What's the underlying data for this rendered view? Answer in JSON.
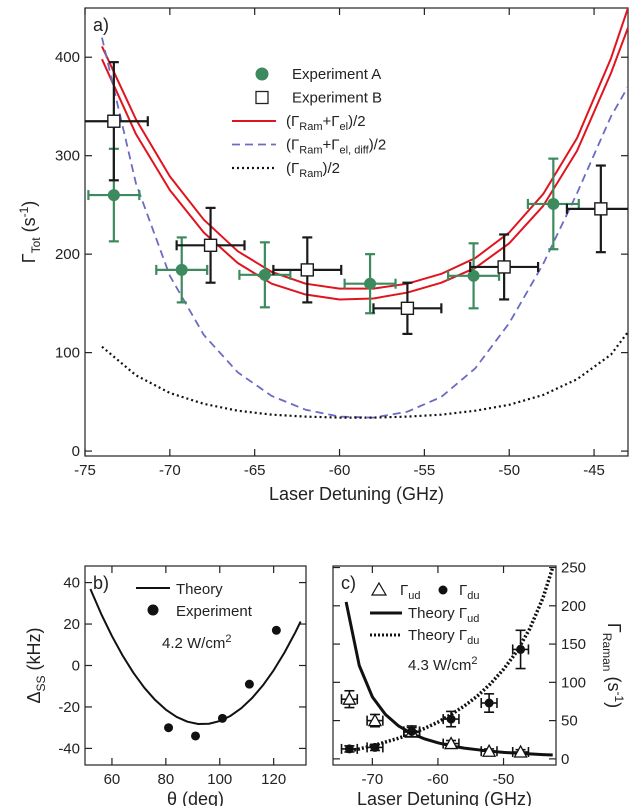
{
  "chart_data": [
    {
      "id": "a",
      "type": "scatter",
      "panel_label": "a)",
      "xlabel": "Laser Detuning (GHz)",
      "ylabel": "ΓTot (s-1)",
      "ylabel_parts": {
        "main": "Γ",
        "sub": "Tot",
        "unit_open": " (s",
        "unit_sup": "-1",
        "unit_close": ")"
      },
      "xlim": [
        -75,
        -43
      ],
      "ylim": [
        -5,
        450
      ],
      "xticks": [
        -75,
        -70,
        -65,
        -60,
        -55,
        -50,
        -45
      ],
      "yticks": [
        0,
        100,
        200,
        300,
        400
      ],
      "legend_position": "top-center",
      "legend": [
        {
          "label": "Experiment A",
          "main": "Experiment A"
        },
        {
          "label": "Experiment B",
          "main": "Experiment B"
        },
        {
          "label": "(ΓRam+Γel)/2",
          "p1": "(Γ",
          "s1": "Ram",
          "p2": "+Γ",
          "s2": "el",
          "p3": ")/2"
        },
        {
          "label": "(ΓRam+Γel, diff)/2",
          "p1": "(Γ",
          "s1": "Ram",
          "p2": "+Γ",
          "s2": "el, diff",
          "p3": ")/2"
        },
        {
          "label": "(ΓRam)/2",
          "p1": "(Γ",
          "s1": "Ram",
          "p2": "",
          "s2": "",
          "p3": ")/2"
        }
      ],
      "series": [
        {
          "name": "Experiment A",
          "kind": "points",
          "marker": "filled-circle",
          "color": "#3c8a5e",
          "points": [
            {
              "x": -73.3,
              "y": 260,
              "xerr": 1.5,
              "yerr": 47
            },
            {
              "x": -69.3,
              "y": 184,
              "xerr": 1.5,
              "yerr": 33
            },
            {
              "x": -64.4,
              "y": 179,
              "xerr": 1.5,
              "yerr": 33
            },
            {
              "x": -58.2,
              "y": 170,
              "xerr": 1.5,
              "yerr": 30
            },
            {
              "x": -52.1,
              "y": 178,
              "xerr": 1.5,
              "yerr": 33
            },
            {
              "x": -47.4,
              "y": 251,
              "xerr": 1.5,
              "yerr": 46
            }
          ]
        },
        {
          "name": "Experiment B",
          "kind": "points",
          "marker": "open-square",
          "color": "#1a1a1a",
          "points": [
            {
              "x": -73.3,
              "y": 335,
              "xerr": 2.0,
              "yerr": 60
            },
            {
              "x": -67.6,
              "y": 209,
              "xerr": 2.0,
              "yerr": 38
            },
            {
              "x": -61.9,
              "y": 184,
              "xerr": 2.0,
              "yerr": 33
            },
            {
              "x": -56.0,
              "y": 145,
              "xerr": 2.0,
              "yerr": 26
            },
            {
              "x": -50.3,
              "y": 187,
              "xerr": 2.0,
              "yerr": 33
            },
            {
              "x": -44.6,
              "y": 246,
              "xerr": 2.0,
              "yerr": 44
            }
          ]
        },
        {
          "name": "(ΓRam+Γel)/2 upper",
          "kind": "line",
          "style": "solid",
          "color": "#e0141e",
          "x": [
            -74,
            -72,
            -70,
            -68,
            -66,
            -64,
            -62,
            -60,
            -58,
            -56,
            -54,
            -52,
            -50,
            -48,
            -46,
            -44,
            -43
          ],
          "y": [
            411,
            337,
            279,
            235,
            203,
            182,
            170,
            165,
            165,
            170,
            180,
            196,
            222,
            261,
            318,
            399,
            450
          ]
        },
        {
          "name": "(ΓRam+Γel)/2 lower",
          "kind": "line",
          "style": "solid",
          "color": "#e0141e",
          "x": [
            -74,
            -72,
            -70,
            -68,
            -66,
            -64,
            -62,
            -60,
            -58,
            -56,
            -54,
            -52,
            -50,
            -48,
            -46,
            -44,
            -43
          ],
          "y": [
            398,
            322,
            265,
            222,
            191,
            170,
            159,
            154,
            155,
            161,
            171,
            186,
            211,
            249,
            305,
            384,
            430
          ]
        },
        {
          "name": "(ΓRam+Γel, diff)/2",
          "kind": "line",
          "style": "dashed",
          "color": "#6b6bc4",
          "x": [
            -74,
            -72,
            -70,
            -68,
            -66,
            -64,
            -62,
            -60,
            -58,
            -56,
            -54,
            -52,
            -50,
            -48,
            -46,
            -44,
            -43
          ],
          "y": [
            420,
            272,
            178,
            118,
            80,
            56,
            42,
            35,
            34,
            40,
            55,
            84,
            130,
            190,
            262,
            340,
            370
          ]
        },
        {
          "name": "(ΓRam)/2",
          "kind": "line",
          "style": "dotted",
          "color": "#111111",
          "x": [
            -74,
            -72,
            -70,
            -68,
            -66,
            -64,
            -62,
            -60,
            -58,
            -56,
            -54,
            -52,
            -50,
            -48,
            -46,
            -44,
            -43
          ],
          "y": [
            106,
            77,
            59,
            48,
            41,
            37,
            35,
            34,
            34,
            35,
            37,
            41,
            47,
            57,
            73,
            98,
            121
          ]
        }
      ]
    },
    {
      "id": "b",
      "type": "scatter",
      "panel_label": "b)",
      "xlabel": "θ (deg)",
      "ylabel": "ΔSS (kHz)",
      "ylabel_parts": {
        "main": "Δ",
        "sub": "SS",
        "unit_open": " (kHz)",
        "unit_sup": "",
        "unit_close": ""
      },
      "xlim": [
        50,
        132
      ],
      "ylim": [
        -48,
        48
      ],
      "xticks": [
        60,
        80,
        100,
        120
      ],
      "yticks": [
        -40,
        -20,
        0,
        20,
        40
      ],
      "legend_position": "top-left",
      "legend": [
        {
          "label": "Theory",
          "main": "Theory"
        },
        {
          "label": "Experiment",
          "main": "Experiment"
        }
      ],
      "annotation": {
        "text": "4.2 W/cm2",
        "main": "4.2 W/cm",
        "sup": "2"
      },
      "series": [
        {
          "name": "Theory",
          "kind": "line",
          "style": "solid",
          "color": "#111111",
          "x": [
            52,
            56,
            60,
            64,
            68,
            72,
            76,
            80,
            84,
            88,
            92,
            96,
            100,
            104,
            108,
            112,
            116,
            120,
            124,
            128,
            130
          ],
          "y": [
            36.9,
            24.9,
            14.2,
            4.7,
            -3.6,
            -10.7,
            -16.6,
            -21.3,
            -24.8,
            -27.1,
            -28.2,
            -28.1,
            -26.8,
            -24.3,
            -20.6,
            -15.7,
            -9.6,
            -2.3,
            6.2,
            15.9,
            21.2
          ]
        },
        {
          "name": "Experiment",
          "kind": "points",
          "marker": "filled-circle",
          "color": "#111111",
          "points": [
            {
              "x": 81,
              "y": -30
            },
            {
              "x": 91,
              "y": -34
            },
            {
              "x": 101,
              "y": -25.5
            },
            {
              "x": 111,
              "y": -9
            },
            {
              "x": 121,
              "y": 17
            }
          ]
        }
      ]
    },
    {
      "id": "c",
      "type": "scatter",
      "panel_label": "c)",
      "xlabel": "Laser Detuning (GHz)",
      "ylabel": "ΓRaman (s-1)",
      "ylabel_parts": {
        "main": "Γ",
        "sub": "Raman",
        "unit_open": " (s",
        "unit_sup": "-1",
        "unit_close": ")"
      },
      "xlim": [
        -76,
        -42
      ],
      "ylim": [
        -8,
        252
      ],
      "xticks": [
        -70,
        -60,
        -50
      ],
      "yticks": [
        0,
        50,
        100,
        150,
        200,
        250
      ],
      "legend_position": "top-left",
      "legend": [
        {
          "label": "Γud",
          "p1": "Γ",
          "s1": "ud"
        },
        {
          "label": "Γdu",
          "p1": "Γ",
          "s1": "du"
        },
        {
          "label": "Theory Γud",
          "p1": "Theory Γ",
          "s1": "ud"
        },
        {
          "label": "Theory Γdu",
          "p1": "Theory Γ",
          "s1": "du"
        }
      ],
      "annotation": {
        "text": "4.3 W/cm2",
        "main": "4.3 W/cm",
        "sup": "2"
      },
      "series": [
        {
          "name": "Γud",
          "kind": "points",
          "marker": "open-triangle",
          "color": "#111111",
          "points": [
            {
              "x": -73.5,
              "y": 78,
              "xerr": 1.2,
              "yerr": 11
            },
            {
              "x": -69.6,
              "y": 50,
              "xerr": 1.2,
              "yerr": 8
            },
            {
              "x": -64.0,
              "y": 35,
              "xerr": 1.2,
              "yerr": 6
            },
            {
              "x": -58.0,
              "y": 20,
              "xerr": 1.2,
              "yerr": 4
            },
            {
              "x": -52.2,
              "y": 10,
              "xerr": 1.2,
              "yerr": 3
            },
            {
              "x": -47.4,
              "y": 9,
              "xerr": 1.2,
              "yerr": 3
            }
          ]
        },
        {
          "name": "Γdu",
          "kind": "points",
          "marker": "filled-circle",
          "color": "#111111",
          "points": [
            {
              "x": -73.5,
              "y": 13,
              "xerr": 1.2,
              "yerr": 4
            },
            {
              "x": -69.6,
              "y": 15,
              "xerr": 1.2,
              "yerr": 4
            },
            {
              "x": -64.0,
              "y": 36,
              "xerr": 1.2,
              "yerr": 7
            },
            {
              "x": -58.0,
              "y": 52,
              "xerr": 1.2,
              "yerr": 10
            },
            {
              "x": -52.2,
              "y": 73,
              "xerr": 1.2,
              "yerr": 12
            },
            {
              "x": -47.4,
              "y": 143,
              "xerr": 1.2,
              "yerr": 25
            }
          ]
        },
        {
          "name": "Theory Γud",
          "kind": "line",
          "style": "solid-thick",
          "color": "#111111",
          "x": [
            -74,
            -72,
            -70,
            -68,
            -66,
            -64,
            -62,
            -60,
            -58,
            -56,
            -54,
            -52,
            -50,
            -48,
            -46,
            -44,
            -42.5
          ],
          "y": [
            205,
            122,
            81,
            58,
            43,
            33,
            26,
            21,
            17,
            14,
            12,
            10,
            8.5,
            7.5,
            6.5,
            5.5,
            5
          ]
        },
        {
          "name": "Theory Γdu",
          "kind": "line",
          "style": "dotted-thick",
          "color": "#111111",
          "x": [
            -74,
            -72,
            -70,
            -68,
            -66,
            -64,
            -62,
            -60,
            -58,
            -56,
            -54,
            -52,
            -50,
            -48,
            -46,
            -44,
            -42.5
          ],
          "y": [
            10,
            13,
            17,
            22,
            27,
            33,
            40,
            48,
            58,
            69,
            82,
            98,
            117,
            140,
            170,
            210,
            250
          ]
        }
      ]
    }
  ]
}
